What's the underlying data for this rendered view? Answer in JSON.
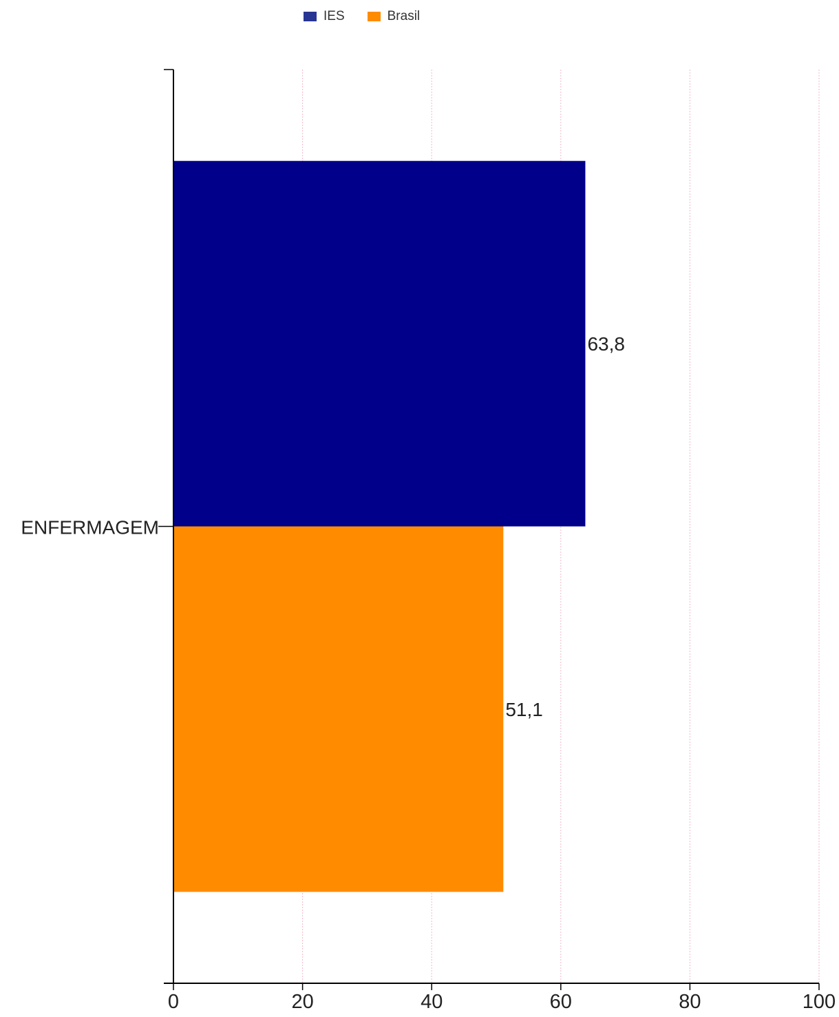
{
  "colors": {
    "ies_legend": "#283593",
    "ies_bar": "#00008b",
    "brasil": "#ff8c00",
    "grid": "#f2b8c6",
    "axis": "#000000"
  },
  "chart_data": {
    "type": "bar",
    "orientation": "horizontal",
    "categories": [
      "ENFERMAGEM"
    ],
    "series": [
      {
        "name": "IES",
        "values": [
          63.8
        ],
        "labels": [
          "63,8"
        ]
      },
      {
        "name": "Brasil",
        "values": [
          51.1
        ],
        "labels": [
          "51,1"
        ]
      }
    ],
    "xlim": [
      0,
      100
    ],
    "xticks": [
      "0",
      "20",
      "40",
      "60",
      "80",
      "100"
    ],
    "grid": true,
    "legend_position": "top"
  }
}
